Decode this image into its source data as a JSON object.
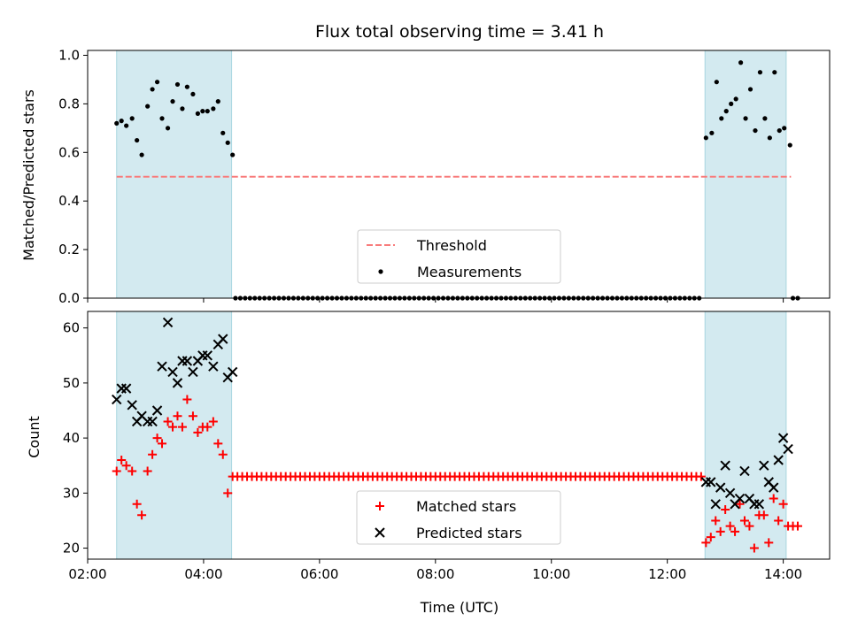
{
  "chart_data": [
    {
      "type": "scatter",
      "title": "Flux total observing time = 3.41 h",
      "xlabel": "",
      "ylabel": "Matched/Predicted stars",
      "xlim": [
        "02:00",
        "14:48"
      ],
      "ylim": [
        0,
        1.02
      ],
      "yticks": [
        "0.0",
        "0.2",
        "0.4",
        "0.6",
        "0.8",
        "1.0"
      ],
      "grid": false,
      "legend_position": "lower-center",
      "shaded_intervals": [
        [
          "02:30",
          "04:29"
        ],
        [
          "12:39",
          "14:03"
        ]
      ],
      "shade_color": "#d3eaf0",
      "threshold": {
        "name": "Threshold",
        "value": 0.5,
        "x_range": [
          "02:30",
          "14:08"
        ],
        "color": "#f87c7c"
      },
      "series": [
        {
          "name": "Measurements",
          "marker": "dot",
          "color": "#000000",
          "x": [
            "02:30",
            "02:35",
            "02:40",
            "02:46",
            "02:51",
            "02:56",
            "03:02",
            "03:07",
            "03:12",
            "03:17",
            "03:23",
            "03:28",
            "03:33",
            "03:38",
            "03:43",
            "03:49",
            "03:54",
            "03:59",
            "04:04",
            "04:10",
            "04:15",
            "04:20",
            "04:25",
            "04:30",
            "12:40",
            "12:46",
            "12:51",
            "12:56",
            "13:01",
            "13:06",
            "13:11",
            "13:16",
            "13:21",
            "13:26",
            "13:31",
            "13:36",
            "13:41",
            "13:46",
            "13:51",
            "13:56",
            "14:01",
            "14:07"
          ],
          "y": [
            0.72,
            0.73,
            0.71,
            0.74,
            0.65,
            0.59,
            0.79,
            0.86,
            0.89,
            0.74,
            0.7,
            0.81,
            0.88,
            0.78,
            0.87,
            0.84,
            0.76,
            0.77,
            0.77,
            0.78,
            0.81,
            0.68,
            0.64,
            0.59,
            0.66,
            0.68,
            0.89,
            0.74,
            0.77,
            0.8,
            0.82,
            0.97,
            0.74,
            0.86,
            0.69,
            0.93,
            0.74,
            0.66,
            0.93,
            0.69,
            0.7,
            0.63
          ]
        },
        {
          "name": "Measurements (no data)",
          "marker": "dot",
          "color": "#000000",
          "x_range": [
            "04:33",
            "12:36"
          ],
          "step_minutes": 5,
          "extra_x": [
            "14:10",
            "14:15"
          ],
          "y": 0
        }
      ]
    },
    {
      "type": "scatter",
      "title": "",
      "xlabel": "Time (UTC)",
      "ylabel": "Count",
      "xlim": [
        "02:00",
        "14:48"
      ],
      "ylim": [
        18,
        63
      ],
      "yticks": [
        "20",
        "30",
        "40",
        "50",
        "60"
      ],
      "xticks": [
        "02:00",
        "04:00",
        "06:00",
        "08:00",
        "10:00",
        "12:00",
        "14:00"
      ],
      "grid": false,
      "legend_position": "lower-center",
      "shaded_intervals": [
        [
          "02:30",
          "04:29"
        ],
        [
          "12:39",
          "14:03"
        ]
      ],
      "shade_color": "#d3eaf0",
      "series": [
        {
          "name": "Matched stars",
          "marker": "plus",
          "color": "#ff0000",
          "x": [
            "02:30",
            "02:35",
            "02:40",
            "02:46",
            "02:51",
            "02:56",
            "03:02",
            "03:07",
            "03:12",
            "03:17",
            "03:23",
            "03:28",
            "03:33",
            "03:38",
            "03:43",
            "03:49",
            "03:54",
            "03:59",
            "04:04",
            "04:10",
            "04:15",
            "04:20",
            "04:25",
            "04:30",
            "12:40",
            "12:45",
            "12:50",
            "12:55",
            "13:00",
            "13:05",
            "13:10",
            "13:15",
            "13:20",
            "13:25",
            "13:30",
            "13:35",
            "13:40",
            "13:45",
            "13:50",
            "13:55",
            "14:00",
            "14:05",
            "14:10",
            "14:15"
          ],
          "y": [
            34,
            36,
            35,
            34,
            28,
            26,
            34,
            37,
            40,
            39,
            43,
            42,
            44,
            42,
            47,
            44,
            41,
            42,
            42,
            43,
            39,
            37,
            30,
            33,
            21,
            22,
            25,
            23,
            27,
            24,
            23,
            28,
            25,
            24,
            20,
            26,
            26,
            21,
            29,
            25,
            28,
            24,
            24,
            24
          ]
        },
        {
          "name": "Matched stars (constant)",
          "marker": "plus",
          "color": "#ff0000",
          "x_range": [
            "04:35",
            "12:35"
          ],
          "step_minutes": 5,
          "y": 33
        },
        {
          "name": "Predicted stars",
          "marker": "x",
          "color": "#000000",
          "x": [
            "02:30",
            "02:35",
            "02:40",
            "02:46",
            "02:51",
            "02:56",
            "03:02",
            "03:07",
            "03:12",
            "03:17",
            "03:23",
            "03:28",
            "03:33",
            "03:38",
            "03:43",
            "03:49",
            "03:54",
            "03:59",
            "04:04",
            "04:10",
            "04:15",
            "04:20",
            "04:25",
            "04:30",
            "12:40",
            "12:45",
            "12:50",
            "12:55",
            "13:00",
            "13:05",
            "13:10",
            "13:15",
            "13:20",
            "13:25",
            "13:30",
            "13:35",
            "13:40",
            "13:45",
            "13:50",
            "13:55",
            "14:00",
            "14:05"
          ],
          "y": [
            47,
            49,
            49,
            46,
            43,
            44,
            43,
            43,
            45,
            53,
            61,
            52,
            50,
            54,
            54,
            52,
            54,
            55,
            55,
            53,
            57,
            58,
            51,
            52,
            32,
            32,
            28,
            31,
            35,
            30,
            28,
            29,
            34,
            29,
            28,
            28,
            35,
            32,
            31,
            36,
            40,
            38
          ]
        }
      ]
    }
  ],
  "legends": {
    "top": [
      "Threshold",
      "Measurements"
    ],
    "bottom": [
      "Matched stars",
      "Predicted stars"
    ]
  }
}
